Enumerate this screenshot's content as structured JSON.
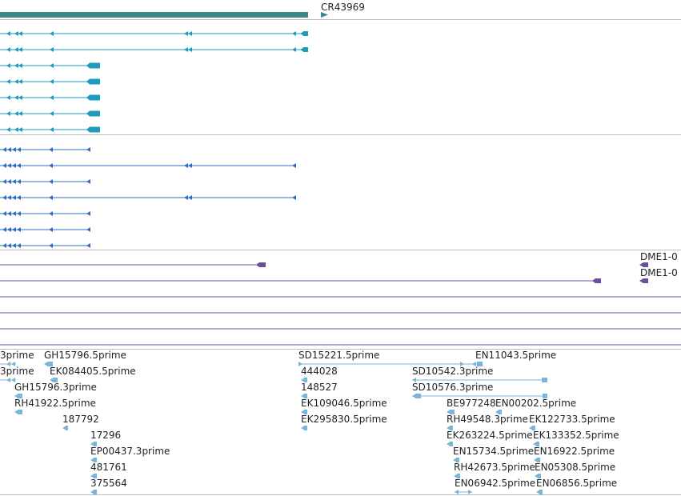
{
  "colors": {
    "gene": "#3a8a8a",
    "transcript_cyan": "#1e9bbb",
    "transcript_blue": "#2f6ec0",
    "purple": "#6b4f9e",
    "est": "#7ab4d9",
    "separator": "#bdbdbd"
  },
  "gene_track": {
    "label": "CR43969"
  },
  "purple_track": {
    "labels": [
      "DME1-0",
      "DME1-0"
    ]
  },
  "est_track": {
    "labels": [
      "3prime",
      "GH15796.5prime",
      "3prime",
      "EK084405.5prime",
      "GH15796.3prime",
      "RH41922.5prime",
      "187792",
      "17296",
      "EP00437.3prime",
      "481761",
      "375564",
      "SD15221.5prime",
      "EN11043.5prime",
      "444028",
      "SD10542.3prime",
      "148527",
      "SD10576.3prime",
      "EK109046.5prime",
      "BE977248",
      "EN00202.5prime",
      "EK295830.5prime",
      "RH49548.3prime",
      "EK122733.5prime",
      "EK263224.5prime",
      "EK133352.5prime",
      "EN15734.5prime",
      "EN16922.5prime",
      "RH42673.5prime",
      "EN05308.5prime",
      "EN06942.5prime",
      "EN06856.5prime"
    ]
  }
}
